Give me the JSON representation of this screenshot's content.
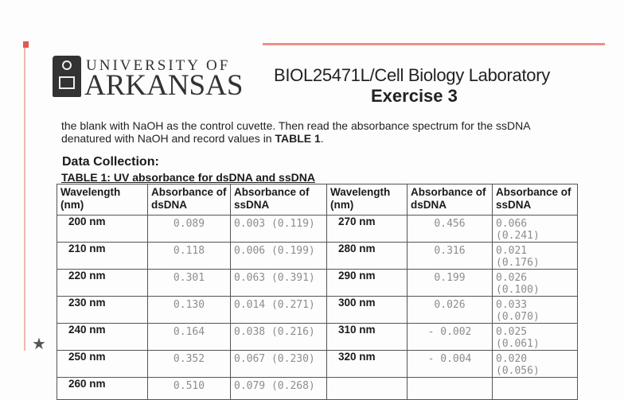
{
  "header": {
    "university_line1": "UNIVERSITY OF",
    "university_line2": "ARKANSAS",
    "course": "BIOL25471L/Cell Biology Laboratory",
    "exercise": "Exercise 3"
  },
  "instructions": {
    "text_before": "the blank with NaOH as the control cuvette. Then read the absorbance spectrum for the ssDNA denatured with NaOH and record values in ",
    "bold": "TABLE 1",
    "text_after": "."
  },
  "section_title": "Data Collection:",
  "table": {
    "caption": "TABLE 1:  UV absorbance for dsDNA and ssDNA",
    "headers": [
      "Wavelength (nm)",
      "Absorbance of dsDNA",
      "Absorbance of ssDNA",
      "Wavelength (nm)",
      "Absorbance of dsDNA",
      "Absorbance of ssDNA"
    ],
    "left_rows": [
      {
        "wavelength": "200 nm",
        "dsdna": "0.089",
        "ssdna": "0.003 (0.119)"
      },
      {
        "wavelength": "210 nm",
        "dsdna": "0.118",
        "ssdna": "0.006 (0.199)"
      },
      {
        "wavelength": "220 nm",
        "dsdna": "0.301",
        "ssdna": "0.063 (0.391)"
      },
      {
        "wavelength": "230 nm",
        "dsdna": "0.130",
        "ssdna": "0.014 (0.271)"
      },
      {
        "wavelength": "240 nm",
        "dsdna": "0.164",
        "ssdna": "0.038 (0.216)"
      },
      {
        "wavelength": "250 nm",
        "dsdna": "0.352",
        "ssdna": "0.067 (0.230)"
      },
      {
        "wavelength": "260 nm",
        "dsdna": "0.510",
        "ssdna": "0.079 (0.268)"
      }
    ],
    "right_rows": [
      {
        "wavelength": "270 nm",
        "dsdna": "0.456",
        "ssdna": "0.066 (0.241)"
      },
      {
        "wavelength": "280 nm",
        "dsdna": "0.316",
        "ssdna": "0.021 (0.176)"
      },
      {
        "wavelength": "290 nm",
        "dsdna": "0.199",
        "ssdna": "0.026 (0.100)"
      },
      {
        "wavelength": "300 nm",
        "dsdna": "0.026",
        "ssdna": "0.033 (0.070)"
      },
      {
        "wavelength": "310 nm",
        "dsdna": "- 0.002",
        "ssdna": "0.025 (0.061)"
      },
      {
        "wavelength": "320 nm",
        "dsdna": "- 0.004",
        "ssdna": "0.020 (0.056)"
      }
    ]
  },
  "colors": {
    "accent_red": "#e8756a",
    "handwriting": "#8d8d8d"
  }
}
